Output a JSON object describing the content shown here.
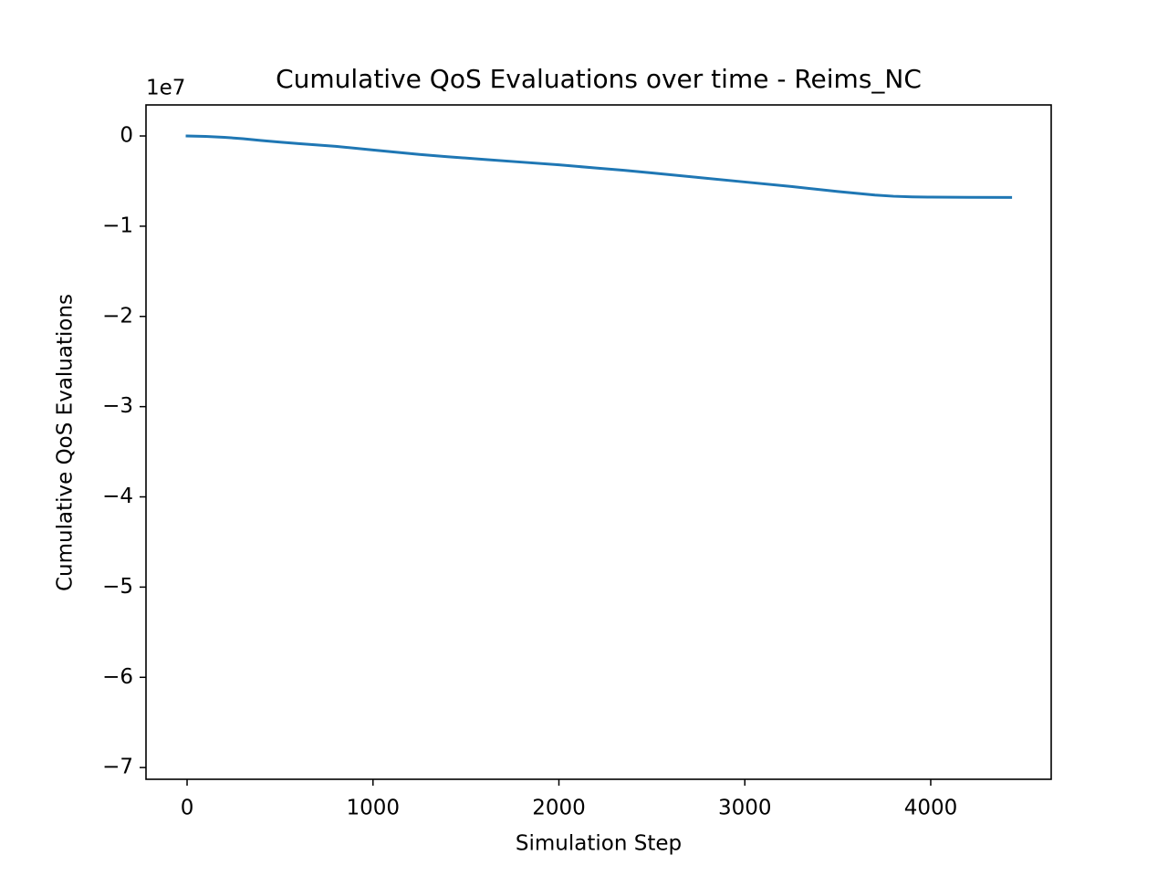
{
  "chart_data": {
    "type": "line",
    "title": "Cumulative QoS Evaluations over time - Reims_NC",
    "x_label": "Simulation Step",
    "y_label": "Cumulative QoS Evaluations",
    "y_offset_text": "1e7",
    "x": [
      0,
      100,
      200,
      300,
      400,
      500,
      600,
      700,
      800,
      1000,
      1250,
      1400,
      1600,
      1800,
      2000,
      2200,
      2350,
      2500,
      2750,
      3000,
      3250,
      3500,
      3700,
      3800,
      3900,
      4000,
      4200,
      4430
    ],
    "series": [
      {
        "name": "Cumulative QoS Evaluations",
        "color": "#1f77b4",
        "values": [
          0,
          -50000,
          -150000,
          -300000,
          -500000,
          -680000,
          -840000,
          -1000000,
          -1150000,
          -1550000,
          -2050000,
          -2300000,
          -2600000,
          -2900000,
          -3200000,
          -3550000,
          -3800000,
          -4100000,
          -4600000,
          -5100000,
          -5600000,
          -6150000,
          -6550000,
          -6680000,
          -6750000,
          -6780000,
          -6800000,
          -6810000
        ]
      }
    ],
    "xlim": [
      -221,
      4648
    ],
    "ylim": [
      -71300000,
      3440000
    ],
    "xticks": [
      0,
      1000,
      2000,
      3000,
      4000
    ],
    "yticks": [
      {
        "value": 0,
        "label": "0"
      },
      {
        "value": -10000000,
        "label": "−1"
      },
      {
        "value": -20000000,
        "label": "−2"
      },
      {
        "value": -30000000,
        "label": "−3"
      },
      {
        "value": -40000000,
        "label": "−4"
      },
      {
        "value": -50000000,
        "label": "−5"
      },
      {
        "value": -60000000,
        "label": "−6"
      },
      {
        "value": -70000000,
        "label": "−7"
      }
    ],
    "grid": false
  }
}
